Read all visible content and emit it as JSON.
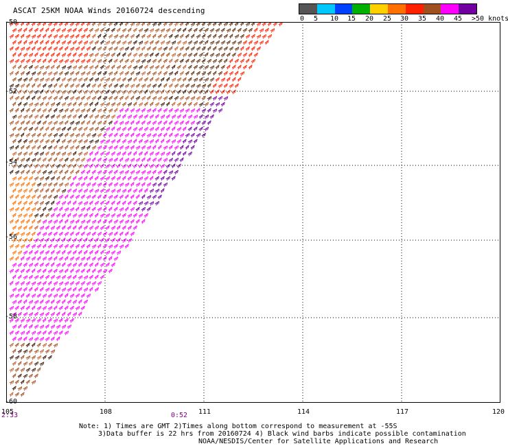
{
  "title": "ASCAT 25KM NOAA Winds 20160724 descending",
  "legend": {
    "colors": [
      "#555555",
      "#00c8ff",
      "#0040ff",
      "#00b000",
      "#ffd000",
      "#ff7000",
      "#ff2000",
      "#a05020",
      "#ff00ff",
      "#7000a0"
    ],
    "labels": [
      "0",
      "5",
      "10",
      "15",
      "20",
      "25",
      "30",
      "35",
      "40",
      "45",
      ">50 knots"
    ]
  },
  "lat_labels": [
    "-50",
    "-52",
    "-54",
    "-56",
    "-58",
    "-60"
  ],
  "lon_labels": [
    "105",
    "108",
    "111",
    "114",
    "117",
    "120"
  ],
  "time_labels": [
    {
      "text": "2:33"
    },
    {
      "text": "0:52"
    }
  ],
  "notes": [
    "Note: 1) Times are GMT 2)Times along bottom correspond to measurement at -55S",
    "3)Data buffer is 22 hrs from 20160724 4) Black wind barbs indicate possible contamination",
    "NOAA/NESDIS/Center for Satellite Applications and Research"
  ],
  "map": {
    "lon_range": [
      105,
      120
    ],
    "lat_range": [
      -60,
      -50
    ],
    "grid": "dotted",
    "swath_edge": "diagonal from about 113.5E -50 to about 106E -60"
  }
}
